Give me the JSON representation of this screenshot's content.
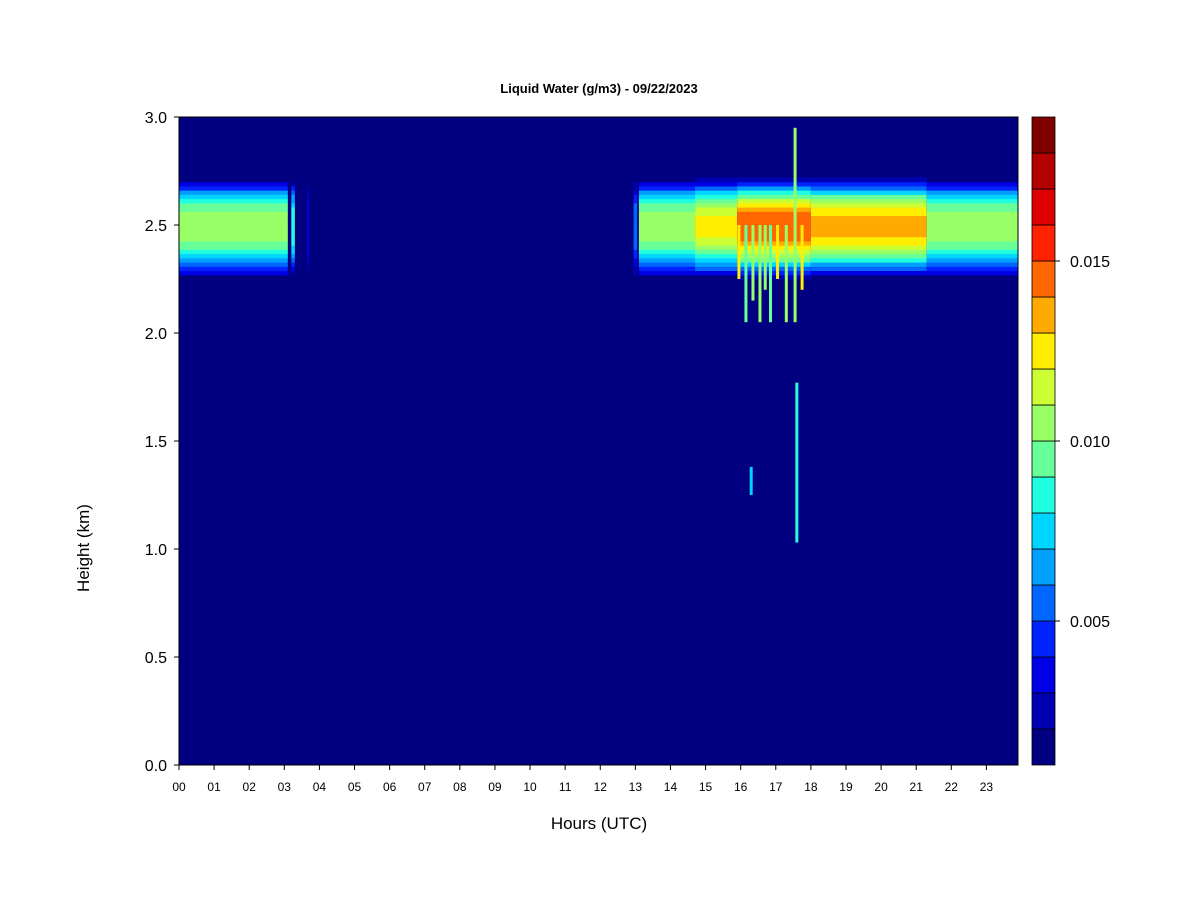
{
  "chart_data": {
    "type": "heatmap",
    "title": "Liquid Water (g/m3) - 09/22/2023",
    "xlabel": "Hours (UTC)",
    "ylabel": "Height (km)",
    "xlim": [
      0,
      23.9
    ],
    "ylim": [
      0.0,
      3.0
    ],
    "x_ticks": [
      {
        "value": 0,
        "label": "00"
      },
      {
        "value": 1,
        "label": "01"
      },
      {
        "value": 2,
        "label": "02"
      },
      {
        "value": 3,
        "label": "03"
      },
      {
        "value": 4,
        "label": "04"
      },
      {
        "value": 5,
        "label": "05"
      },
      {
        "value": 6,
        "label": "06"
      },
      {
        "value": 7,
        "label": "07"
      },
      {
        "value": 8,
        "label": "08"
      },
      {
        "value": 9,
        "label": "09"
      },
      {
        "value": 10,
        "label": "10"
      },
      {
        "value": 11,
        "label": "11"
      },
      {
        "value": 12,
        "label": "12"
      },
      {
        "value": 13,
        "label": "13"
      },
      {
        "value": 14,
        "label": "14"
      },
      {
        "value": 15,
        "label": "15"
      },
      {
        "value": 16,
        "label": "16"
      },
      {
        "value": 17,
        "label": "17"
      },
      {
        "value": 18,
        "label": "18"
      },
      {
        "value": 19,
        "label": "19"
      },
      {
        "value": 20,
        "label": "20"
      },
      {
        "value": 21,
        "label": "21"
      },
      {
        "value": 22,
        "label": "22"
      },
      {
        "value": 23,
        "label": "23"
      }
    ],
    "y_ticks": [
      {
        "value": 0.0,
        "label": "0.0"
      },
      {
        "value": 0.5,
        "label": "0.5"
      },
      {
        "value": 1.0,
        "label": "1.0"
      },
      {
        "value": 1.5,
        "label": "1.5"
      },
      {
        "value": 2.0,
        "label": "2.0"
      },
      {
        "value": 2.5,
        "label": "2.5"
      },
      {
        "value": 3.0,
        "label": "3.0"
      }
    ],
    "background_color": "#000080",
    "colorbar": {
      "range": [
        0.001,
        0.019
      ],
      "colors": [
        "#000080",
        "#0000b3",
        "#0000e6",
        "#0022ff",
        "#0066ff",
        "#00a0ff",
        "#00d5ff",
        "#1fffe0",
        "#66ff99",
        "#99ff66",
        "#ccff33",
        "#ffee00",
        "#ffaa00",
        "#ff6600",
        "#ff2200",
        "#dd0000",
        "#b30000",
        "#800000"
      ],
      "ticks": [
        {
          "value": 0.005,
          "label": "0.005"
        },
        {
          "value": 0.01,
          "label": "0.010"
        },
        {
          "value": 0.015,
          "label": "0.015"
        }
      ]
    },
    "cloud_layers": [
      {
        "x_start": 0.0,
        "x_end": 3.1,
        "y_bottom": 2.25,
        "y_top": 2.72,
        "y_center": 2.5,
        "peak": 0.011
      },
      {
        "x_start": 3.2,
        "x_end": 3.3,
        "y_bottom": 2.25,
        "y_top": 2.72,
        "y_center": 2.5,
        "peak": 0.009
      },
      {
        "x_start": 3.65,
        "x_end": 3.7,
        "y_bottom": 2.25,
        "y_top": 2.72,
        "y_center": 2.5,
        "peak": 0.004
      },
      {
        "x_start": 12.95,
        "x_end": 13.05,
        "y_bottom": 2.25,
        "y_top": 2.72,
        "y_center": 2.5,
        "peak": 0.006
      },
      {
        "x_start": 13.1,
        "x_end": 14.7,
        "y_bottom": 2.25,
        "y_top": 2.72,
        "y_center": 2.5,
        "peak": 0.011
      },
      {
        "x_start": 14.7,
        "x_end": 15.9,
        "y_bottom": 2.25,
        "y_top": 2.72,
        "y_center": 2.5,
        "peak": 0.0125
      },
      {
        "x_start": 15.9,
        "x_end": 18.0,
        "y_bottom": 2.25,
        "y_top": 2.72,
        "y_center": 2.5,
        "peak": 0.015
      },
      {
        "x_start": 18.0,
        "x_end": 21.3,
        "y_bottom": 2.25,
        "y_top": 2.72,
        "y_center": 2.5,
        "peak": 0.0135
      },
      {
        "x_start": 21.3,
        "x_end": 23.9,
        "y_bottom": 2.25,
        "y_top": 2.72,
        "y_center": 2.5,
        "peak": 0.011
      }
    ],
    "streaks": [
      {
        "x": 15.95,
        "y_bottom": 2.25,
        "y_top": 2.5,
        "value": 0.012
      },
      {
        "x": 16.15,
        "y_bottom": 2.05,
        "y_top": 2.5,
        "value": 0.009
      },
      {
        "x": 16.35,
        "y_bottom": 2.15,
        "y_top": 2.5,
        "value": 0.011
      },
      {
        "x": 16.55,
        "y_bottom": 2.05,
        "y_top": 2.5,
        "value": 0.01
      },
      {
        "x": 16.7,
        "y_bottom": 2.2,
        "y_top": 2.5,
        "value": 0.011
      },
      {
        "x": 16.85,
        "y_bottom": 2.05,
        "y_top": 2.5,
        "value": 0.009
      },
      {
        "x": 17.05,
        "y_bottom": 2.25,
        "y_top": 2.5,
        "value": 0.012
      },
      {
        "x": 17.3,
        "y_bottom": 2.05,
        "y_top": 2.5,
        "value": 0.01
      },
      {
        "x": 17.55,
        "y_bottom": 2.05,
        "y_top": 2.95,
        "value": 0.011
      },
      {
        "x": 17.75,
        "y_bottom": 2.2,
        "y_top": 2.5,
        "value": 0.012
      },
      {
        "x": 16.3,
        "y_bottom": 1.25,
        "y_top": 1.38,
        "value": 0.007
      },
      {
        "x": 17.6,
        "y_bottom": 1.03,
        "y_top": 1.77,
        "value": 0.008
      }
    ]
  }
}
